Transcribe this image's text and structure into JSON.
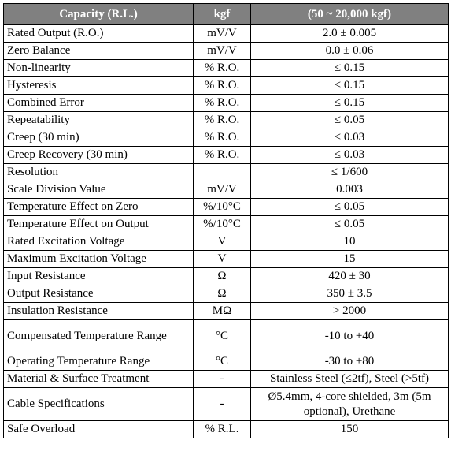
{
  "header": {
    "col1": "Capacity (R.L.)",
    "col2": "kgf",
    "col3": "(50 ~ 20,000 kgf)"
  },
  "rows": [
    {
      "param": "Rated Output (R.O.)",
      "unit": "mV/V",
      "value": "2.0 ± 0.005"
    },
    {
      "param": "Zero Balance",
      "unit": "mV/V",
      "value": "0.0 ± 0.06"
    },
    {
      "param": "Non-linearity",
      "unit": "% R.O.",
      "value": "≤ 0.15"
    },
    {
      "param": "Hysteresis",
      "unit": "% R.O.",
      "value": "≤ 0.15"
    },
    {
      "param": "Combined Error",
      "unit": "% R.O.",
      "value": "≤ 0.15"
    },
    {
      "param": "Repeatability",
      "unit": "% R.O.",
      "value": "≤ 0.05"
    },
    {
      "param": "Creep (30 min)",
      "unit": "% R.O.",
      "value": "≤ 0.03"
    },
    {
      "param": "Creep Recovery (30 min)",
      "unit": "% R.O.",
      "value": "≤ 0.03"
    },
    {
      "param": "Resolution",
      "unit": "",
      "value": "≤ 1/600"
    },
    {
      "param": "Scale Division Value",
      "unit": "mV/V",
      "value": "0.003"
    },
    {
      "param": "Temperature Effect on Zero",
      "unit": "%/10°C",
      "value": "≤ 0.05"
    },
    {
      "param": "Temperature Effect on Output",
      "unit": "%/10°C",
      "value": "≤ 0.05"
    },
    {
      "param": "Rated Excitation Voltage",
      "unit": "V",
      "value": "10"
    },
    {
      "param": "Maximum Excitation Voltage",
      "unit": "V",
      "value": "15"
    },
    {
      "param": "Input Resistance",
      "unit": "Ω",
      "value": "420 ± 30"
    },
    {
      "param": "Output Resistance",
      "unit": "Ω",
      "value": "350 ± 3.5"
    },
    {
      "param": "Insulation Resistance",
      "unit": "MΩ",
      "value": "> 2000"
    },
    {
      "param": "Compensated Temperature Range",
      "unit": "°C",
      "value": "-10 to +40"
    },
    {
      "param": "Operating Temperature Range",
      "unit": "°C",
      "value": "-30 to +80"
    },
    {
      "param": "Material & Surface Treatment",
      "unit": "-",
      "value": "Stainless Steel (≤2tf), Steel (>5tf)"
    },
    {
      "param": "Cable Specifications",
      "unit": "-",
      "value": "Ø5.4mm, 4-core shielded, 3m (5m optional), Urethane"
    },
    {
      "param": "Safe Overload",
      "unit": "% R.L.",
      "value": "150"
    }
  ]
}
